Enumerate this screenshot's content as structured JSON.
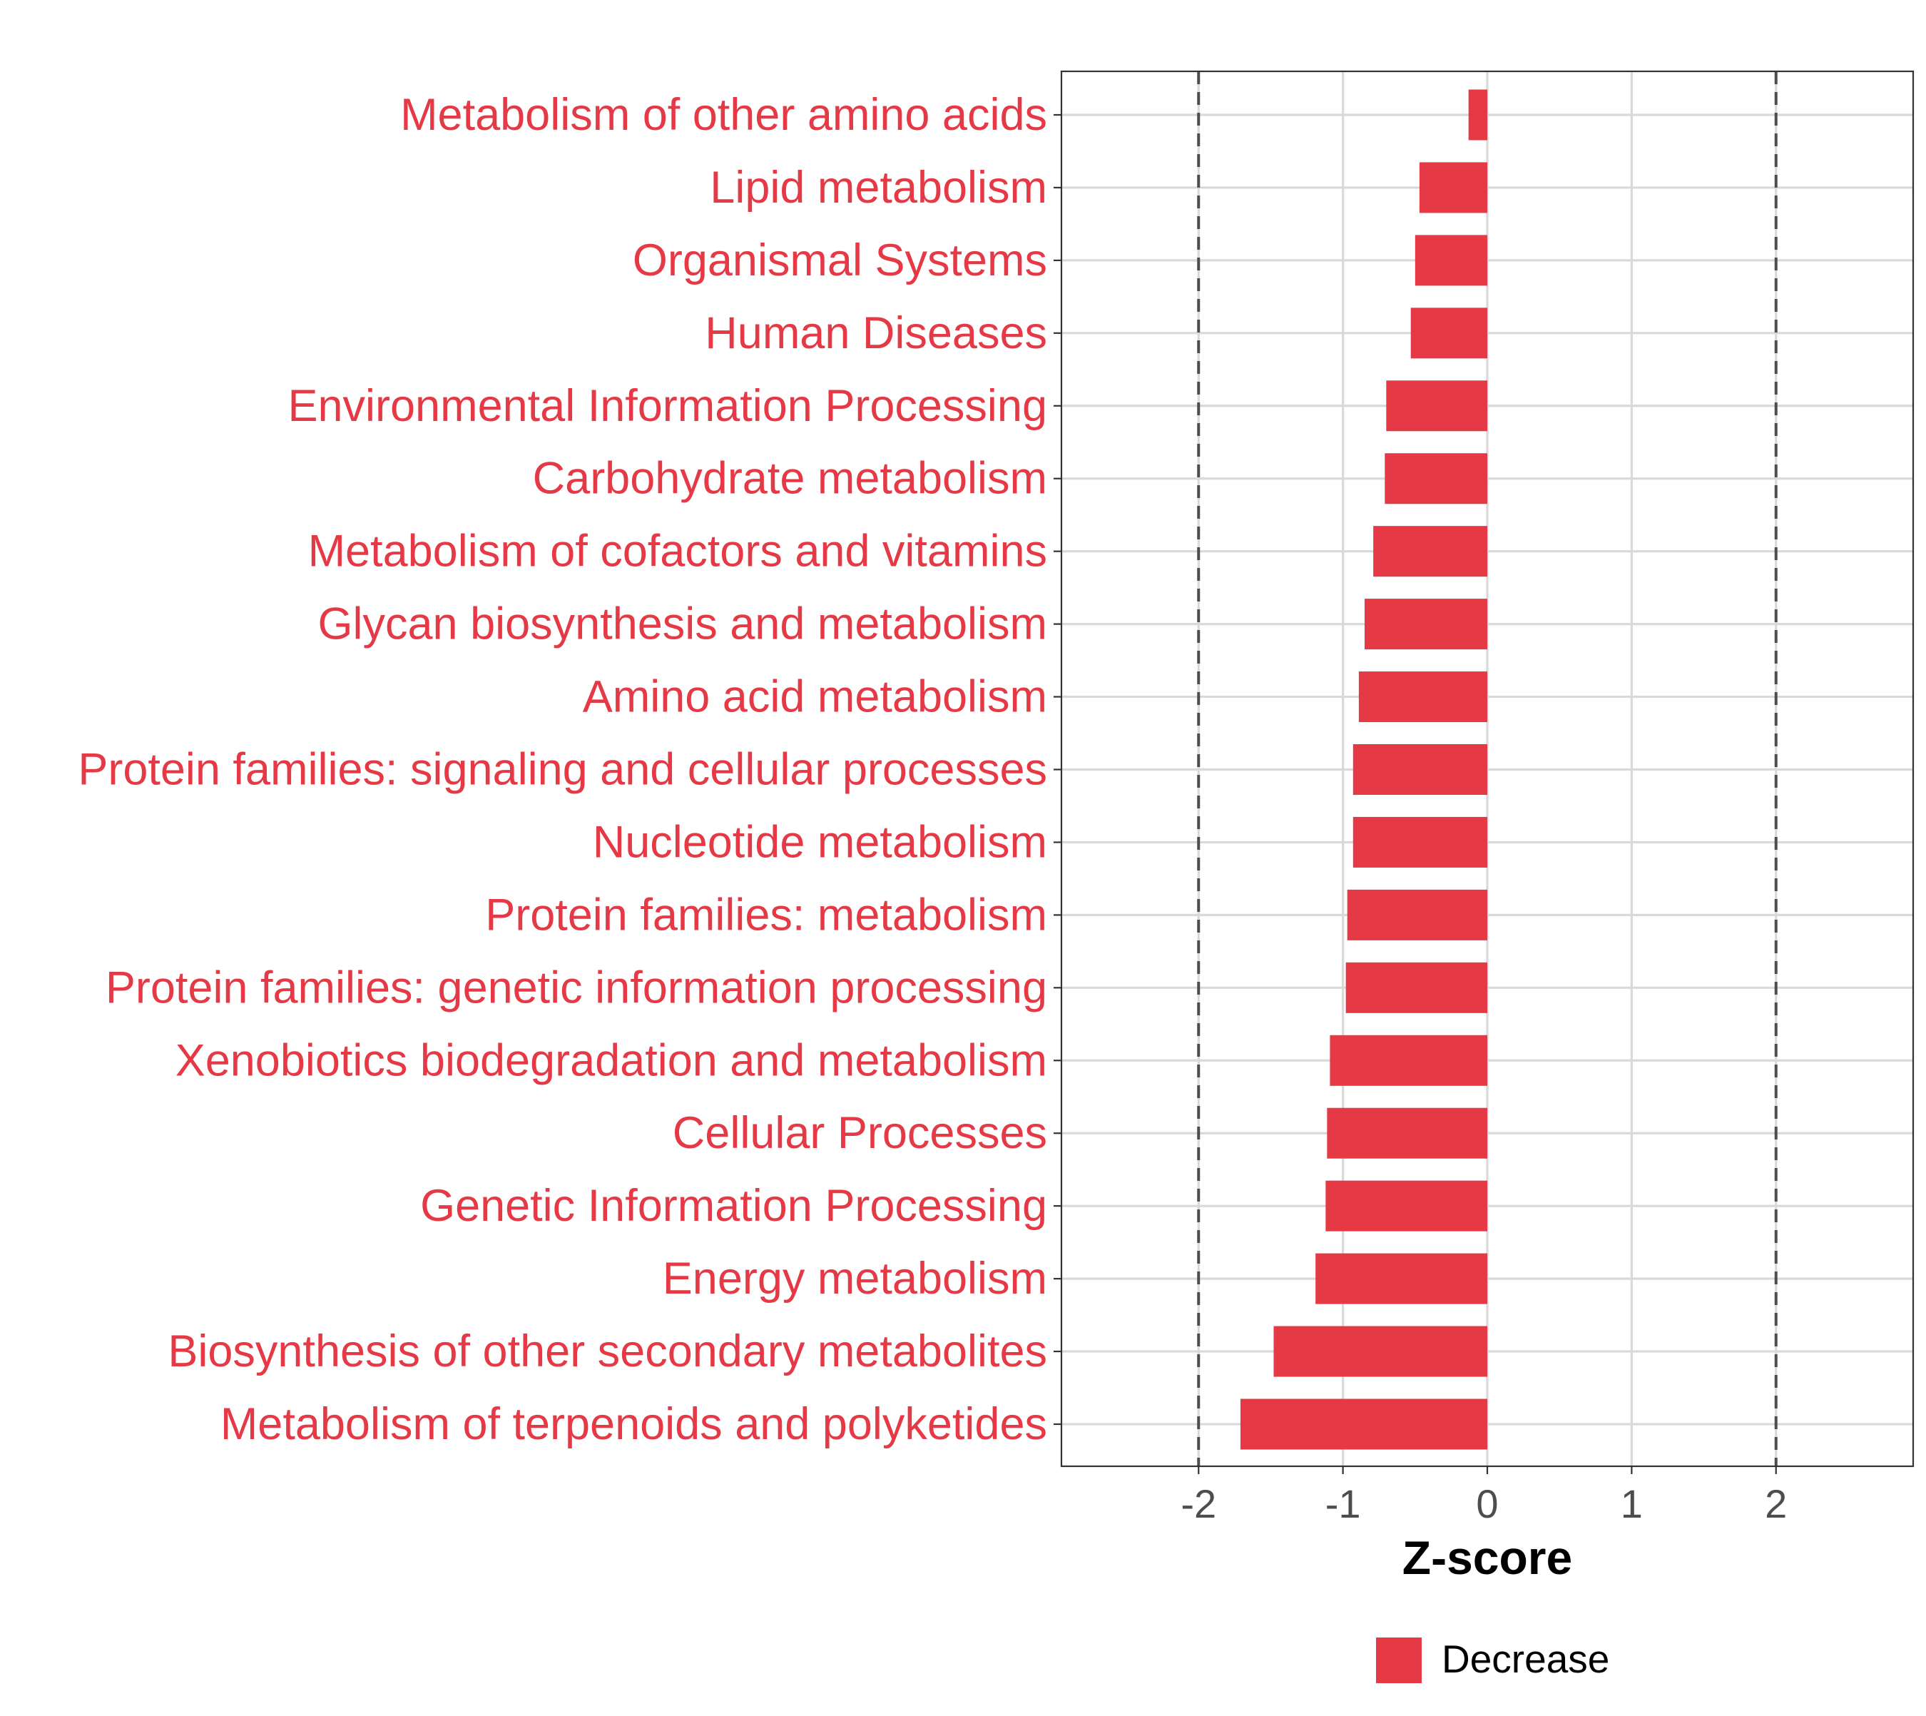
{
  "chart_data": {
    "type": "bar",
    "orientation": "horizontal",
    "categories": [
      "Metabolism of other amino acids",
      "Lipid metabolism",
      "Organismal Systems",
      "Human Diseases",
      "Environmental Information Processing",
      "Carbohydrate metabolism",
      "Metabolism of cofactors and vitamins",
      "Glycan biosynthesis and metabolism",
      "Amino acid metabolism",
      "Protein families: signaling and cellular processes",
      "Nucleotide metabolism",
      "Protein families: metabolism",
      "Protein families: genetic information processing",
      "Xenobiotics biodegradation and metabolism",
      "Cellular Processes",
      "Genetic Information Processing",
      "Energy metabolism",
      "Biosynthesis of other secondary metabolites",
      "Metabolism of terpenoids and polyketides"
    ],
    "values": [
      -0.13,
      -0.47,
      -0.5,
      -0.53,
      -0.7,
      -0.71,
      -0.79,
      -0.85,
      -0.89,
      -0.93,
      -0.93,
      -0.97,
      -0.98,
      -1.09,
      -1.11,
      -1.12,
      -1.19,
      -1.48,
      -1.71
    ],
    "title": "",
    "xlabel": "Z-score",
    "ylabel": "",
    "xlim": [
      -2.95,
      2.95
    ],
    "xticks": [
      -2,
      -1,
      0,
      1,
      2
    ],
    "xtick_labels": [
      "-2",
      "-1",
      "0",
      "1",
      "2"
    ],
    "reference_lines": [
      -2,
      2
    ],
    "grid": true,
    "legend": {
      "position": "bottom",
      "entries": [
        {
          "label": "Decrease",
          "color": "#E63946"
        }
      ]
    },
    "colors": {
      "bar": "#E63946",
      "category_label": "#E63946",
      "grid": "#D9D9D9",
      "reference_line": "#4D4D4D",
      "tick_label": "#4D4D4D",
      "axis_title": "#000000"
    }
  }
}
